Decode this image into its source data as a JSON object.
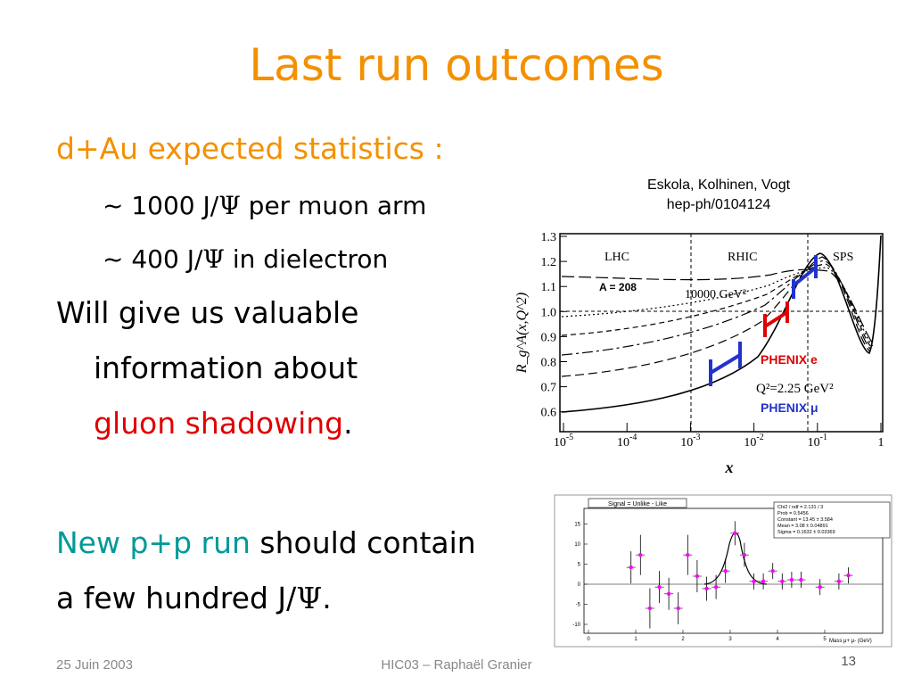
{
  "title": "Last run outcomes",
  "body": [
    [
      "d+Au expected statistics :"
    ],
    [
      "~ 1000 J/",
      "Ψ",
      " per muon arm"
    ],
    [
      "~ 400 J/",
      "Ψ",
      " in dielectron"
    ],
    [
      "Will give us valuable"
    ],
    [
      "information about"
    ],
    [
      "gluon shadowing",
      "."
    ],
    [
      "New p+p run",
      " should contain"
    ],
    [
      "a few hundred J/",
      "Ψ",
      "."
    ]
  ],
  "figure1": {
    "caption": [
      "Eskola, Kolhinen, Vogt",
      "hep-ph/0104124"
    ],
    "yticks": [
      "1.3",
      "1.2",
      "1.1",
      "1.0",
      "0.9",
      "0.8",
      "0.7",
      "0.6"
    ],
    "xticks": [
      {
        "base": "10",
        "exponent": "-5"
      },
      {
        "base": "10",
        "exponent": "-4"
      },
      {
        "base": "10",
        "exponent": "-3"
      },
      {
        "base": "10",
        "exponent": "-2"
      },
      {
        "base": "10",
        "exponent": "-1"
      },
      {
        "base": "1",
        "exponent": ""
      }
    ],
    "xlabel": "x",
    "ylabel": "R_g^A(x,Q^2)",
    "labels": {
      "lhc": "LHC",
      "rhic": "RHIC",
      "sps": "SPS",
      "a": "A = 208",
      "q_high": "10000 GeV²",
      "q_low": "Q²=2.25 GeV²",
      "phenix_e": "PHENIX e",
      "phenix_mu": "PHENIX μ"
    }
  },
  "figure2": {
    "title": "Signal = Unlike - Like",
    "stats": [
      "Chi2 / ndf = 2.131 / 3",
      "Prob = 0.5456",
      "Constant = 13.45 ± 3.584",
      "Mean = 3.08 ± 0.04891",
      "Sigma = 0.1632 ± 0.03369"
    ],
    "yticks": [
      "15",
      "10",
      "5",
      "0",
      "-5",
      "-10"
    ],
    "xticks": [
      "0",
      "1",
      "2",
      "3",
      "4",
      "5"
    ],
    "xlabel": "Mass μ+ μ- (GeV)",
    "points": {
      "x": [
        0.9,
        1.1,
        1.3,
        1.5,
        1.7,
        1.9,
        2.1,
        2.3,
        2.5,
        2.7,
        2.9,
        3.1,
        3.3,
        3.5,
        3.7,
        3.9,
        4.1,
        4.3,
        4.5,
        4.9,
        5.3,
        5.5
      ],
      "y": [
        4.2,
        7.3,
        -6,
        -0.7,
        -2.4,
        -6,
        7.3,
        2,
        -1.1,
        -0.7,
        3.3,
        12.7,
        7.3,
        0.7,
        0.7,
        3.3,
        0.7,
        1.1,
        1.1,
        -0.7,
        0.7,
        2.2
      ],
      "errors": [
        4,
        5,
        5,
        4,
        4,
        4,
        5,
        4,
        3,
        3,
        3,
        3,
        3,
        2,
        2,
        2,
        2,
        2,
        2,
        2,
        2,
        2
      ]
    }
  },
  "footer": {
    "date": "25 Juin 2003",
    "center": "HIC03 – Raphaël Granier",
    "page": "13"
  }
}
